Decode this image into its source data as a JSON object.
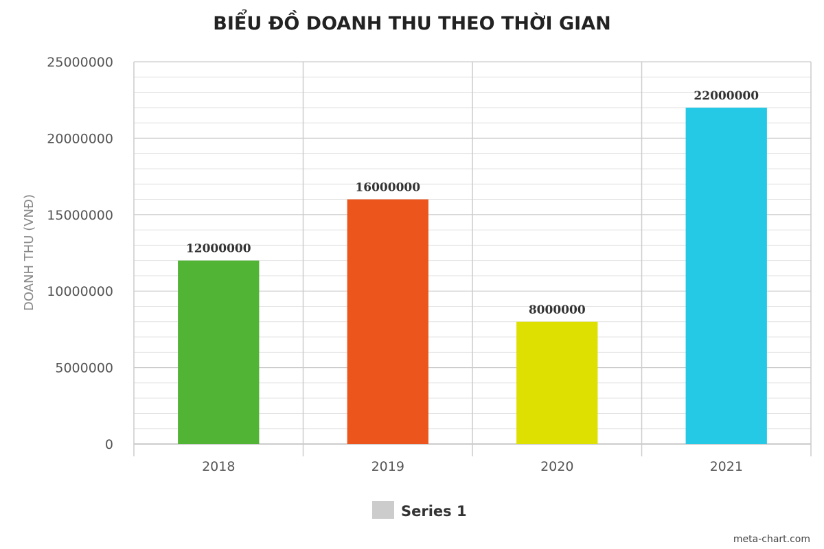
{
  "chart_data": {
    "type": "bar",
    "title": "BIỂU ĐỒ DOANH THU THEO THỜI GIAN",
    "xlabel": "",
    "ylabel": "DOANH THU (VNĐ)",
    "categories": [
      "2018",
      "2019",
      "2020",
      "2021"
    ],
    "series": [
      {
        "name": "Series 1",
        "values": [
          12000000,
          16000000,
          8000000,
          22000000
        ],
        "colors": [
          "#52b435",
          "#ec561d",
          "#dde000",
          "#25c9e6"
        ]
      }
    ],
    "ylim": [
      0,
      25000000
    ],
    "yticks": [
      "0",
      "5000000",
      "10000000",
      "15000000",
      "20000000",
      "25000000"
    ],
    "data_labels": [
      "12000000",
      "16000000",
      "8000000",
      "22000000"
    ],
    "grid": true,
    "legend": {
      "position": "bottom-center",
      "swatch_color": "#cccccc"
    }
  },
  "credit": "meta-chart.com"
}
